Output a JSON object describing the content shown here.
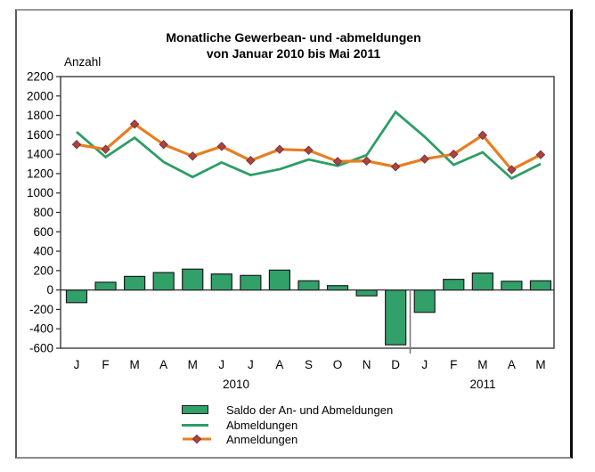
{
  "title": {
    "line1": "Monatliche Gewerbean- und -abmeldungen",
    "line2": "von Januar 2010 bis Mai 2011"
  },
  "axis": {
    "y_label": "Anzahl",
    "year_labels": [
      "2010",
      "2011"
    ]
  },
  "legend": [
    {
      "label": "Saldo der An- und Abmeldungen",
      "swatch": "green-bar"
    },
    {
      "label": "Abmeldungen",
      "swatch": "green-line"
    },
    {
      "label": "Anmeldungen",
      "swatch": "orange-line-with-diamond-marker"
    }
  ],
  "colors": {
    "bar_fill": "#31A069",
    "bar_stroke": "#1c1c1c",
    "abmeldungen_line": "#2C9E66",
    "anmeldungen_line": "#E87E21",
    "marker_fill": "#A84444",
    "marker_stroke": "#7e3030",
    "axis": "#2a2a2a",
    "separator": "#7a7a7a"
  },
  "chart_data": {
    "type": "combo-bar-line",
    "title": "Monatliche Gewerbean- und -abmeldungen von Januar 2010 bis Mai 2011",
    "ylabel": "Anzahl",
    "ylim": [
      -600,
      2200
    ],
    "y_tick_step": 200,
    "y_ticks": [
      2200,
      2000,
      1800,
      1600,
      1400,
      1200,
      1000,
      800,
      600,
      400,
      200,
      0,
      -200,
      -400,
      -600
    ],
    "grid": false,
    "legend_position": "bottom",
    "categories": [
      "J",
      "F",
      "M",
      "A",
      "M",
      "J",
      "J",
      "A",
      "S",
      "O",
      "N",
      "D",
      "J",
      "F",
      "M",
      "A",
      "M"
    ],
    "category_groups": [
      {
        "label": "2010",
        "from": 0,
        "to": 11
      },
      {
        "label": "2011",
        "from": 12,
        "to": 16
      }
    ],
    "series": [
      {
        "name": "Saldo der An- und Abmeldungen",
        "type": "bar",
        "values": [
          -130,
          80,
          140,
          180,
          215,
          165,
          150,
          205,
          95,
          45,
          -60,
          -565,
          -230,
          110,
          175,
          90,
          95
        ]
      },
      {
        "name": "Abmeldungen",
        "type": "line",
        "values": [
          1630,
          1370,
          1570,
          1320,
          1165,
          1315,
          1185,
          1245,
          1345,
          1280,
          1390,
          1835,
          1580,
          1290,
          1420,
          1150,
          1300
        ]
      },
      {
        "name": "Anmeldungen",
        "type": "line",
        "marker": "diamond",
        "values": [
          1500,
          1450,
          1710,
          1500,
          1380,
          1480,
          1335,
          1450,
          1440,
          1325,
          1330,
          1270,
          1350,
          1400,
          1595,
          1240,
          1395
        ]
      }
    ]
  }
}
